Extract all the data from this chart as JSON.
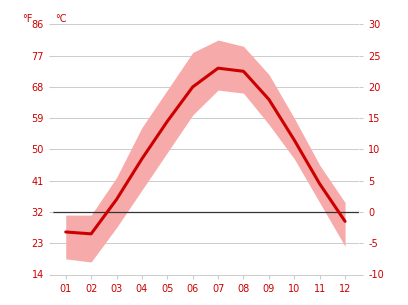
{
  "months": [
    1,
    2,
    3,
    4,
    5,
    6,
    7,
    8,
    9,
    10,
    11,
    12
  ],
  "month_labels": [
    "01",
    "02",
    "03",
    "04",
    "05",
    "06",
    "07",
    "08",
    "09",
    "10",
    "11",
    "12"
  ],
  "mean_c": [
    -3.2,
    -3.5,
    2.0,
    8.5,
    14.5,
    20.0,
    23.0,
    22.5,
    18.0,
    11.5,
    4.5,
    -1.5
  ],
  "high_c": [
    -0.5,
    -0.5,
    5.5,
    13.5,
    19.5,
    25.5,
    27.5,
    26.5,
    22.0,
    15.0,
    7.5,
    1.5
  ],
  "low_c": [
    -7.5,
    -8.0,
    -2.5,
    3.5,
    9.5,
    15.5,
    19.5,
    19.0,
    14.0,
    8.5,
    1.5,
    -5.5
  ],
  "ylim_c": [
    -10,
    30
  ],
  "yticks_c": [
    -10,
    -5,
    0,
    5,
    10,
    15,
    20,
    25,
    30
  ],
  "yticks_f": [
    14,
    23,
    32,
    41,
    50,
    59,
    68,
    77,
    86
  ],
  "xlim": [
    0.5,
    12.55
  ],
  "line_color": "#cc0000",
  "band_color": "#f7aaaa",
  "zero_line_color": "#333333",
  "background_color": "#ffffff",
  "grid_color": "#cccccc",
  "label_color": "#cc0000",
  "tick_fontsize": 7,
  "title_f": "°F",
  "title_c": "°C"
}
